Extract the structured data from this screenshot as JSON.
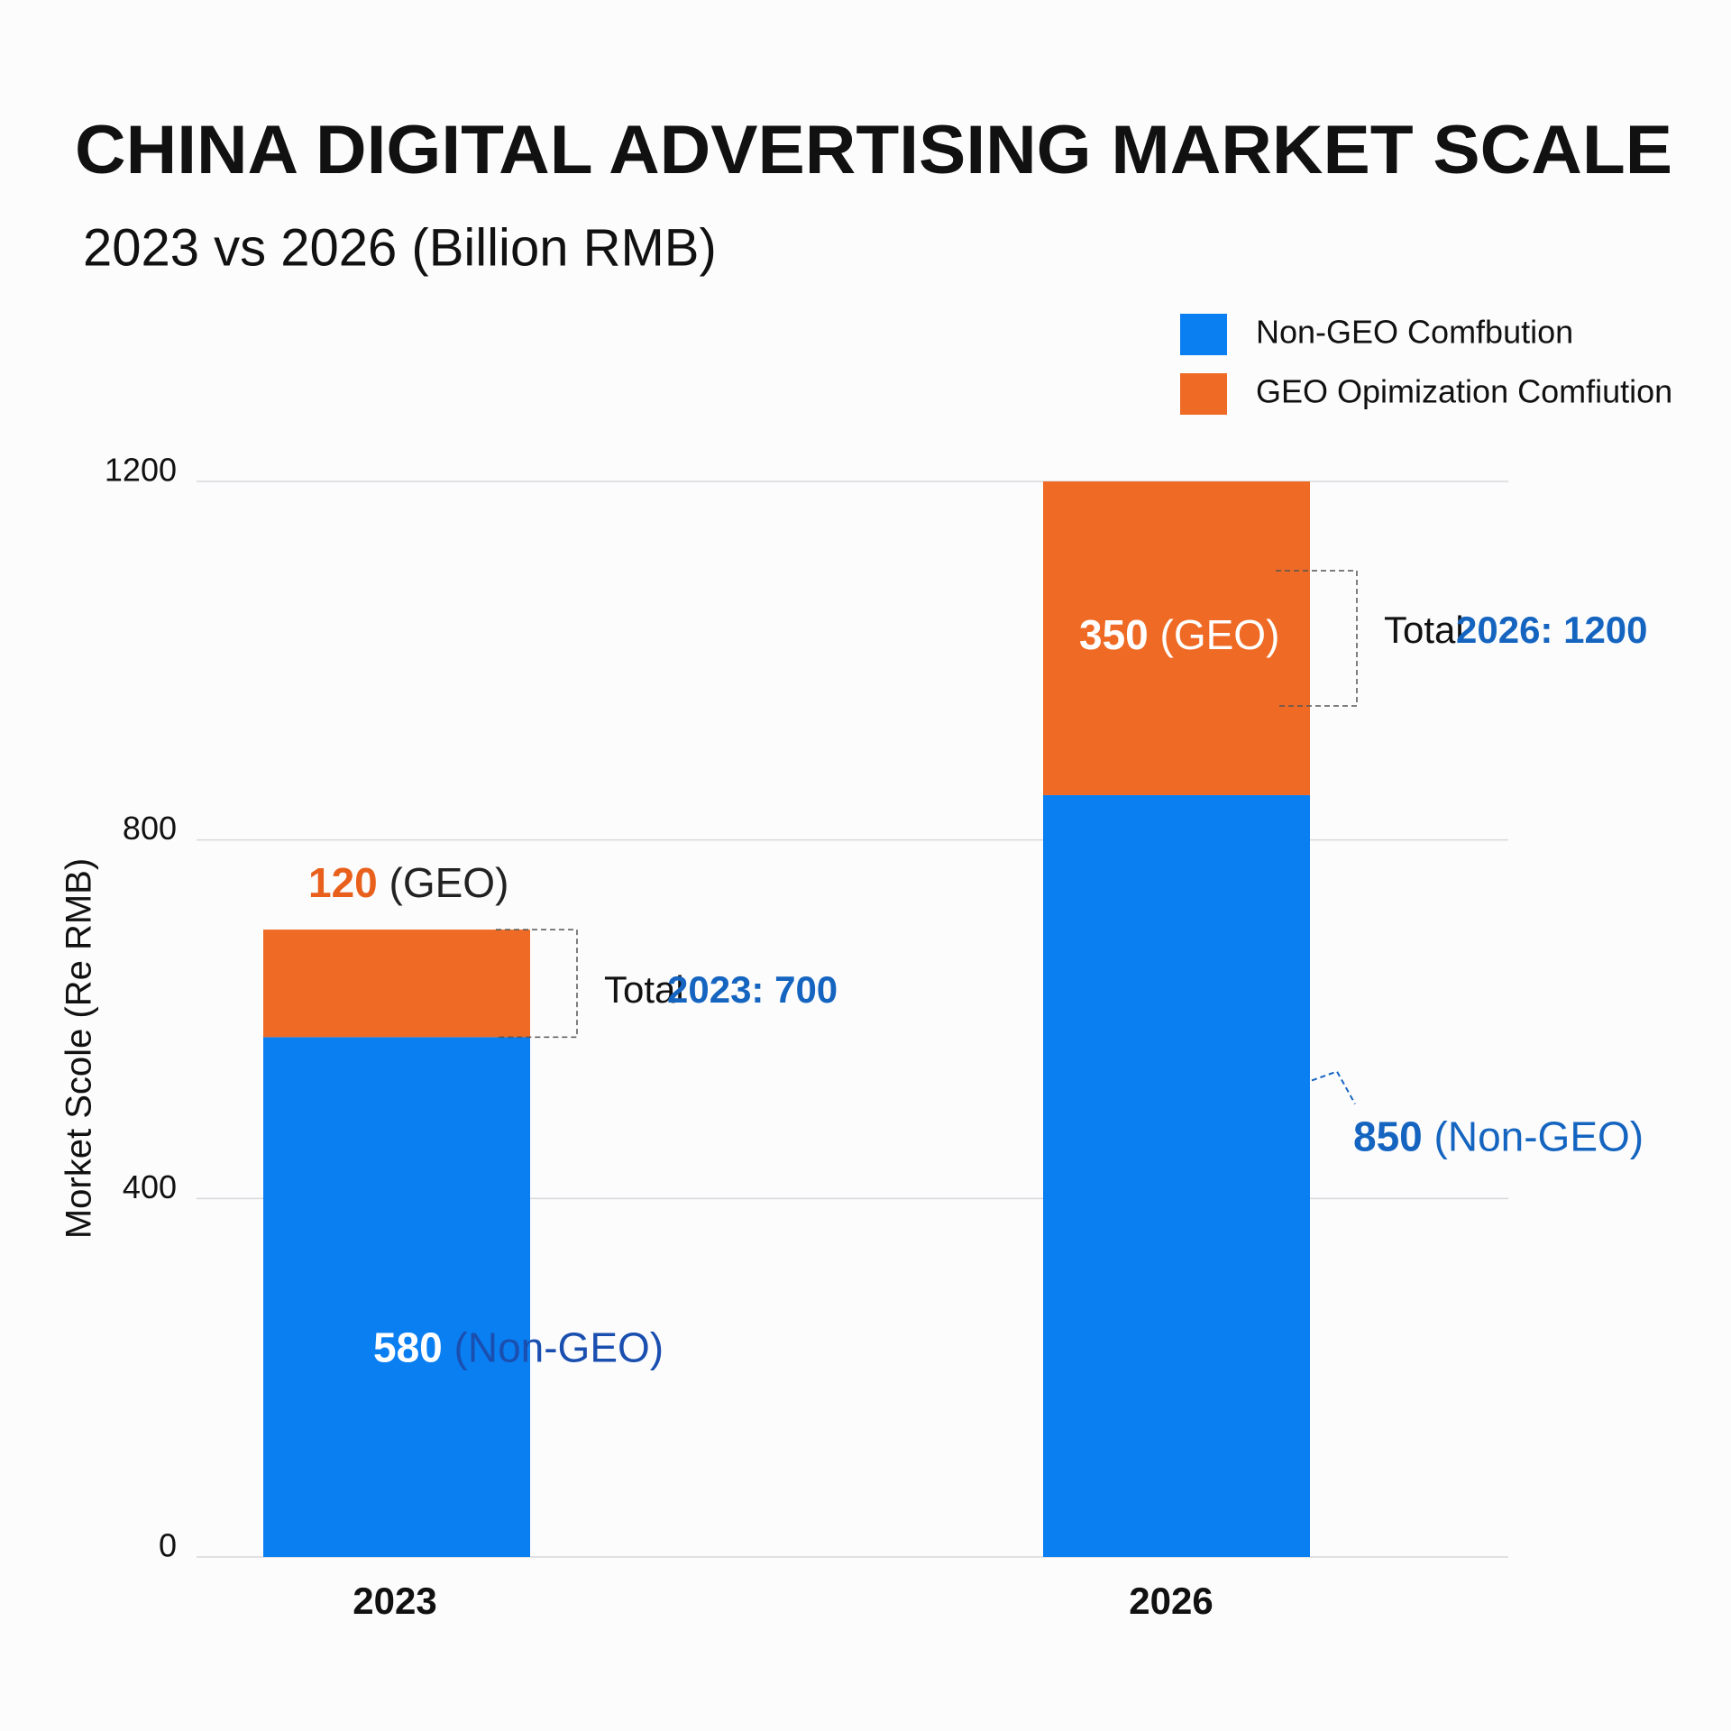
{
  "chart_data": {
    "type": "stacked_bar",
    "title": "CHINA DIGITAL ADVERTISING MARKET SCALE",
    "subtitle": "2023 vs 2026 (Billion RMB)",
    "y_label": "Morket Scole (Re RMB)",
    "categories": [
      "2023",
      "2026"
    ],
    "series": [
      {
        "name": "Non-GEO Comfbution",
        "color": "#0a7ff2",
        "values": [
          580,
          850
        ],
        "value_labels": [
          "580 (Non-GEO)",
          "850 (Non-GEO)"
        ]
      },
      {
        "name": "GEO Opimization Comfiution",
        "color": "#ef6a24",
        "values": [
          120,
          350
        ],
        "value_labels": [
          "120 (GEO)",
          "350 (GEO)"
        ]
      }
    ],
    "ylim": [
      0,
      1200
    ],
    "yticks": [
      0,
      400,
      800,
      1200
    ],
    "grid": true,
    "legend": "top-right",
    "annotations": [
      {
        "text": "Total",
        "highlight": "2023:  700"
      },
      {
        "text": "Total",
        "highlight": "2026: 1200"
      }
    ]
  }
}
